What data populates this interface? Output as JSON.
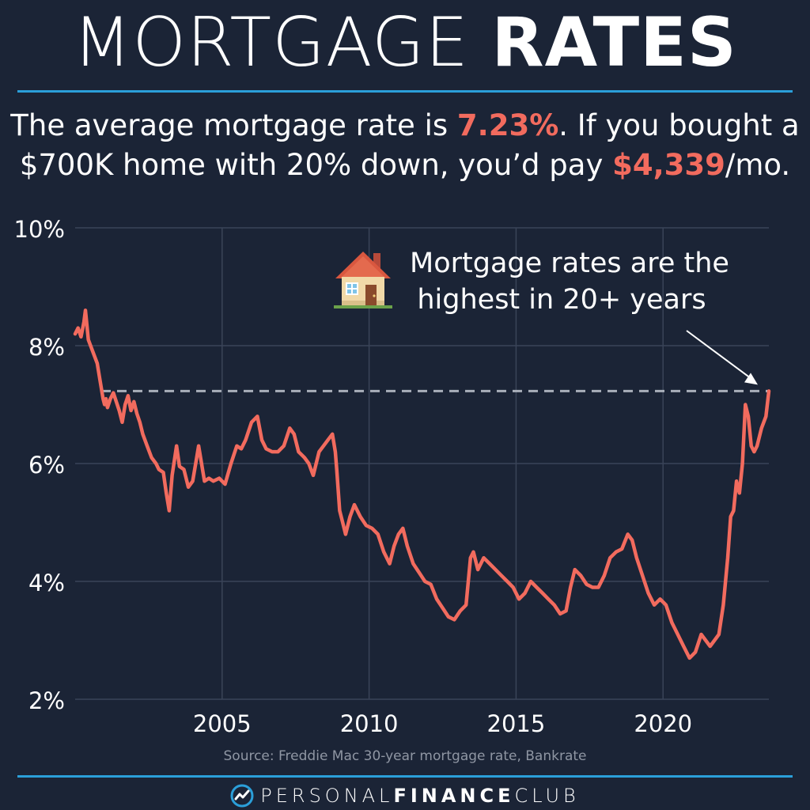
{
  "header": {
    "title_part1": "MORTGAGE",
    "title_part2": "RATES",
    "subtitle_line1_a": "The average mortgage rate is ",
    "subtitle_line1_rate": "7.23%",
    "subtitle_line1_b": ". If you bought a",
    "subtitle_line2_a": "$700K home with 20% down, you’d pay ",
    "subtitle_line2_payment": "$4,339",
    "subtitle_line2_b": "/mo."
  },
  "annotation": {
    "icon": "house-icon",
    "line1": "Mortgage rates are the",
    "line2": "highest in 20+ years"
  },
  "source": "Source: Freddie Mac 30-year mortgage rate, Bankrate",
  "footer": {
    "brand_part1": "PERSONAL",
    "brand_part2": "FINANCE",
    "brand_part3": "CLUB"
  },
  "colors": {
    "background": "#1b2436",
    "line": "#f26b5e",
    "accent_rule": "#2b9fd9",
    "grid": "#3a4458",
    "reference_line": "#a9afba"
  },
  "chart_data": {
    "type": "line",
    "title": "",
    "xlabel": "",
    "ylabel": "",
    "xlim": [
      2000.0,
      2023.6
    ],
    "ylim": [
      2,
      10
    ],
    "x_ticks": [
      2005,
      2010,
      2015,
      2020
    ],
    "x_tick_labels": [
      "2005",
      "2010",
      "2015",
      "2020"
    ],
    "y_ticks": [
      2,
      4,
      6,
      8,
      10
    ],
    "y_tick_labels": [
      "2%",
      "4%",
      "6%",
      "8%",
      "10%"
    ],
    "grid": true,
    "reference_line": {
      "y": 7.23,
      "style": "dashed"
    },
    "series": [
      {
        "name": "",
        "x": [
          2000.0,
          2000.1,
          2000.2,
          2000.3,
          2000.35,
          2000.45,
          2000.6,
          2000.75,
          2000.85,
          2000.95,
          2001.0,
          2001.05,
          2001.1,
          2001.2,
          2001.3,
          2001.4,
          2001.5,
          2001.6,
          2001.7,
          2001.8,
          2001.9,
          2002.0,
          2002.1,
          2002.2,
          2002.3,
          2002.45,
          2002.6,
          2002.75,
          2002.85,
          2003.0,
          2003.1,
          2003.2,
          2003.3,
          2003.45,
          2003.55,
          2003.7,
          2003.85,
          2004.0,
          2004.1,
          2004.2,
          2004.3,
          2004.4,
          2004.55,
          2004.7,
          2004.9,
          2005.1,
          2005.3,
          2005.5,
          2005.65,
          2005.8,
          2006.0,
          2006.2,
          2006.35,
          2006.5,
          2006.7,
          2006.9,
          2007.1,
          2007.3,
          2007.45,
          2007.6,
          2007.8,
          2007.95,
          2008.1,
          2008.2,
          2008.3,
          2008.45,
          2008.6,
          2008.75,
          2008.85,
          2008.9,
          2009.0,
          2009.1,
          2009.2,
          2009.35,
          2009.5,
          2009.7,
          2009.9,
          2010.1,
          2010.3,
          2010.5,
          2010.7,
          2010.85,
          2011.0,
          2011.15,
          2011.3,
          2011.5,
          2011.7,
          2011.9,
          2012.1,
          2012.3,
          2012.5,
          2012.7,
          2012.9,
          2013.1,
          2013.3,
          2013.45,
          2013.55,
          2013.7,
          2013.9,
          2014.1,
          2014.3,
          2014.5,
          2014.7,
          2014.9,
          2015.1,
          2015.3,
          2015.5,
          2015.7,
          2015.9,
          2016.1,
          2016.3,
          2016.5,
          2016.7,
          2016.85,
          2017.0,
          2017.2,
          2017.4,
          2017.6,
          2017.8,
          2018.0,
          2018.2,
          2018.4,
          2018.6,
          2018.8,
          2018.95,
          2019.1,
          2019.3,
          2019.5,
          2019.7,
          2019.9,
          2020.1,
          2020.3,
          2020.5,
          2020.7,
          2020.9,
          2021.1,
          2021.3,
          2021.45,
          2021.6,
          2021.75,
          2021.9,
          2022.05,
          2022.2,
          2022.3,
          2022.4,
          2022.5,
          2022.6,
          2022.7,
          2022.8,
          2022.9,
          2023.0,
          2023.1,
          2023.2,
          2023.35,
          2023.5,
          2023.6
        ],
        "values": [
          8.2,
          8.3,
          8.15,
          8.4,
          8.6,
          8.1,
          7.9,
          7.7,
          7.4,
          7.1,
          7.0,
          7.1,
          6.95,
          7.1,
          7.2,
          7.05,
          6.9,
          6.7,
          7.0,
          7.15,
          6.9,
          7.05,
          6.85,
          6.7,
          6.5,
          6.3,
          6.1,
          6.0,
          5.9,
          5.85,
          5.5,
          5.2,
          5.8,
          6.3,
          5.95,
          5.9,
          5.6,
          5.7,
          6.0,
          6.3,
          6.0,
          5.7,
          5.75,
          5.7,
          5.75,
          5.65,
          6.0,
          6.3,
          6.25,
          6.4,
          6.7,
          6.8,
          6.4,
          6.25,
          6.2,
          6.2,
          6.3,
          6.6,
          6.5,
          6.2,
          6.1,
          6.0,
          5.8,
          6.0,
          6.2,
          6.3,
          6.4,
          6.5,
          6.2,
          5.9,
          5.2,
          5.0,
          4.8,
          5.1,
          5.3,
          5.1,
          4.95,
          4.9,
          4.8,
          4.5,
          4.3,
          4.6,
          4.8,
          4.9,
          4.6,
          4.3,
          4.15,
          4.0,
          3.95,
          3.7,
          3.55,
          3.4,
          3.35,
          3.5,
          3.6,
          4.4,
          4.5,
          4.2,
          4.4,
          4.3,
          4.2,
          4.1,
          4.0,
          3.9,
          3.7,
          3.8,
          4.0,
          3.9,
          3.8,
          3.7,
          3.6,
          3.45,
          3.5,
          3.9,
          4.2,
          4.1,
          3.95,
          3.9,
          3.9,
          4.1,
          4.4,
          4.5,
          4.55,
          4.8,
          4.7,
          4.4,
          4.1,
          3.8,
          3.6,
          3.7,
          3.6,
          3.3,
          3.1,
          2.9,
          2.7,
          2.8,
          3.1,
          3.0,
          2.9,
          3.0,
          3.1,
          3.6,
          4.4,
          5.1,
          5.2,
          5.7,
          5.5,
          6.0,
          7.0,
          6.8,
          6.3,
          6.2,
          6.3,
          6.6,
          6.8,
          7.23
        ]
      }
    ]
  }
}
